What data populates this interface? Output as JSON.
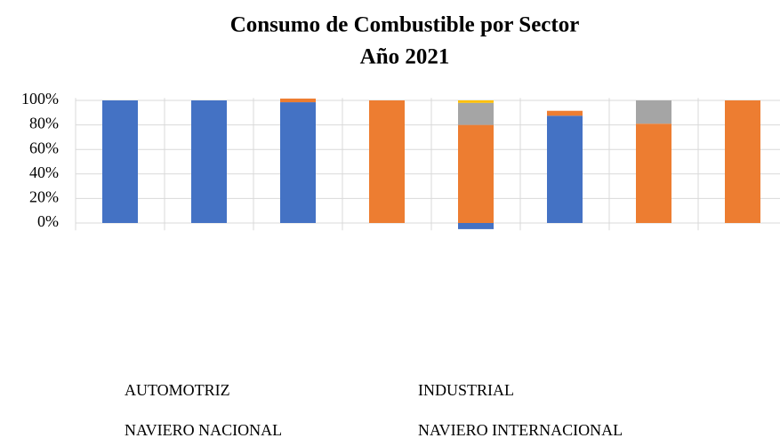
{
  "chart_data": {
    "type": "stacked_bar",
    "title": "Consumo de Combustible por Sector",
    "subtitle": "Año 2021",
    "categories": [
      null,
      null,
      null,
      null,
      null,
      null,
      null,
      null
    ],
    "series": [
      {
        "name": "AUTOMOTRIZ",
        "color": "#4472c4",
        "values": [
          100,
          100,
          98.5,
          null,
          -5,
          87.5,
          null,
          null
        ]
      },
      {
        "name": "INDUSTRIAL",
        "color": "#ed7d31",
        "values": [
          null,
          null,
          3,
          100,
          80,
          4,
          81,
          100
        ]
      },
      {
        "name": "NAVIERO NACIONAL",
        "color": "#a5a5a5",
        "values": [
          null,
          null,
          null,
          null,
          18,
          null,
          19,
          null
        ]
      },
      {
        "name": "NAVIERO INTERNACIONAL",
        "color": "#ffc000",
        "values": [
          null,
          null,
          null,
          null,
          2,
          null,
          null,
          null
        ]
      }
    ],
    "ylim": [
      -6,
      102
    ],
    "yticks": [
      {
        "value": 0,
        "label": "0%"
      },
      {
        "value": 20,
        "label": "20%"
      },
      {
        "value": 40,
        "label": "40%"
      },
      {
        "value": 60,
        "label": "60%"
      },
      {
        "value": 80,
        "label": "80%"
      },
      {
        "value": 100,
        "label": "100%"
      }
    ],
    "grid": true
  }
}
